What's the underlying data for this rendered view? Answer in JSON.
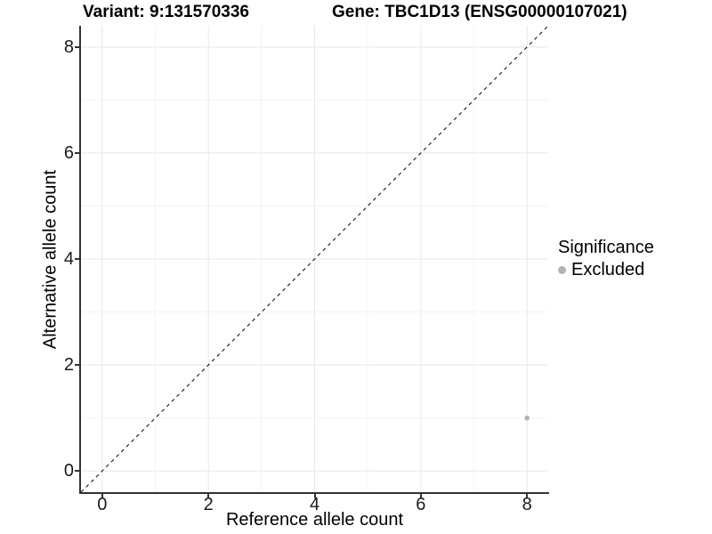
{
  "titles": {
    "variant": "Variant: 9:131570336",
    "gene": "Gene: TBC1D13 (ENSG00000107021)"
  },
  "chart_data": {
    "type": "scatter",
    "title_left": "Variant: 9:131570336",
    "title_right": "Gene: TBC1D13 (ENSG00000107021)",
    "xlabel": "Reference allele count",
    "ylabel": "Alternative allele count",
    "xlim": [
      -0.4,
      8.4
    ],
    "ylim": [
      -0.4,
      8.4
    ],
    "xticks": [
      0,
      2,
      4,
      6,
      8
    ],
    "yticks": [
      0,
      2,
      4,
      6,
      8
    ],
    "xticks_minor": [
      1,
      3,
      5,
      7
    ],
    "yticks_minor": [
      1,
      3,
      5,
      7
    ],
    "grid": true,
    "points": [
      {
        "x": 8,
        "y": 1,
        "significance": "Excluded"
      }
    ],
    "identity_line": {
      "style": "dashed",
      "from": [
        -0.4,
        -0.4
      ],
      "to": [
        8.4,
        8.4
      ]
    },
    "legend": {
      "position": "right",
      "title": "Significance",
      "items": [
        {
          "label": "Excluded",
          "color": "#b3b3b3"
        }
      ]
    },
    "colors": {
      "point": "#b3b3b3",
      "grid_major": "#e8e8e8",
      "grid_minor": "#f4f4f4",
      "axis_line": "#333333",
      "identity_line": "#000000",
      "text": "#000000"
    }
  }
}
